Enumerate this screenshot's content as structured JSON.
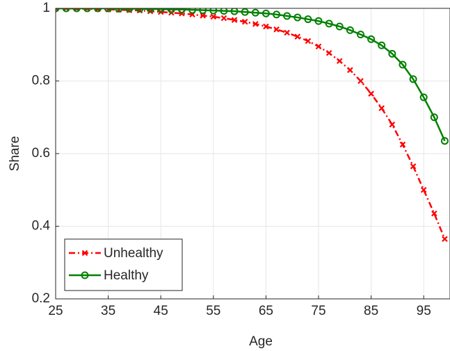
{
  "chart_data": {
    "type": "line",
    "xlabel": "Age",
    "ylabel": "Share",
    "x": [
      25,
      27,
      29,
      31,
      33,
      35,
      37,
      39,
      41,
      43,
      45,
      47,
      49,
      51,
      53,
      55,
      57,
      59,
      61,
      63,
      65,
      67,
      69,
      71,
      73,
      75,
      77,
      79,
      81,
      83,
      85,
      87,
      89,
      91,
      93,
      95,
      97,
      99
    ],
    "series": [
      {
        "name": "Unhealthy",
        "color": "#ff0000",
        "dash": true,
        "marker": "x",
        "values": [
          1.0,
          1.0,
          0.999,
          0.999,
          0.998,
          0.997,
          0.996,
          0.995,
          0.994,
          0.992,
          0.99,
          0.988,
          0.986,
          0.983,
          0.98,
          0.977,
          0.973,
          0.968,
          0.963,
          0.957,
          0.95,
          0.942,
          0.933,
          0.922,
          0.91,
          0.895,
          0.877,
          0.855,
          0.83,
          0.8,
          0.765,
          0.725,
          0.68,
          0.625,
          0.565,
          0.5,
          0.435,
          0.365
        ]
      },
      {
        "name": "Healthy",
        "color": "#008000",
        "dash": false,
        "marker": "o",
        "values": [
          1.0,
          1.0,
          1.0,
          1.0,
          1.0,
          1.0,
          0.999,
          0.999,
          0.999,
          0.998,
          0.998,
          0.997,
          0.997,
          0.996,
          0.995,
          0.994,
          0.993,
          0.992,
          0.99,
          0.988,
          0.986,
          0.983,
          0.979,
          0.975,
          0.97,
          0.965,
          0.958,
          0.95,
          0.94,
          0.928,
          0.915,
          0.898,
          0.875,
          0.845,
          0.805,
          0.755,
          0.7,
          0.635
        ]
      }
    ],
    "xlim": [
      25,
      100
    ],
    "xticks": [
      25,
      35,
      45,
      55,
      65,
      75,
      85,
      95
    ],
    "ylim": [
      0.2,
      1
    ],
    "yticks": [
      0.2,
      0.4,
      0.6,
      0.8,
      1
    ],
    "grid": true,
    "legend": "lower-left"
  }
}
